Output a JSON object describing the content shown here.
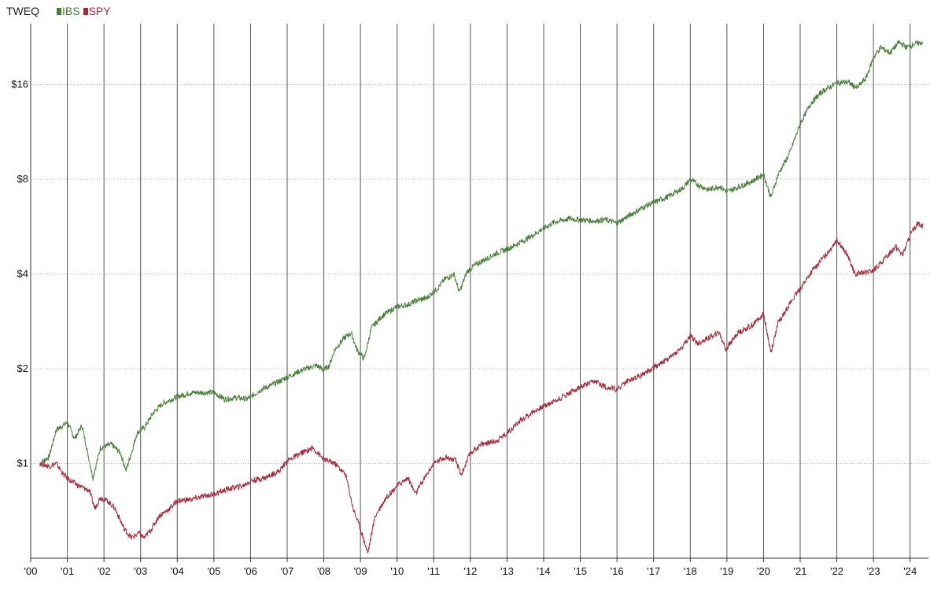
{
  "chart_data": {
    "type": "line",
    "title": "TWEQ",
    "yscale": "log2",
    "ylim": [
      0.5,
      25
    ],
    "xlim": [
      2000.0,
      2024.5
    ],
    "y_ticks": [
      {
        "value": 1,
        "label": "$1"
      },
      {
        "value": 2,
        "label": "$2"
      },
      {
        "value": 4,
        "label": "$4"
      },
      {
        "value": 8,
        "label": "$8"
      },
      {
        "value": 16,
        "label": "$16"
      }
    ],
    "x_ticks": [
      {
        "value": 2000,
        "label": "'00"
      },
      {
        "value": 2001,
        "label": "'01"
      },
      {
        "value": 2002,
        "label": "'02"
      },
      {
        "value": 2003,
        "label": "'03"
      },
      {
        "value": 2004,
        "label": "'04"
      },
      {
        "value": 2005,
        "label": "'05"
      },
      {
        "value": 2006,
        "label": "'06"
      },
      {
        "value": 2007,
        "label": "'07"
      },
      {
        "value": 2008,
        "label": "'08"
      },
      {
        "value": 2009,
        "label": "'09"
      },
      {
        "value": 2010,
        "label": "'10"
      },
      {
        "value": 2011,
        "label": "'11"
      },
      {
        "value": 2012,
        "label": "'12"
      },
      {
        "value": 2013,
        "label": "'13"
      },
      {
        "value": 2014,
        "label": "'14"
      },
      {
        "value": 2015,
        "label": "'15"
      },
      {
        "value": 2016,
        "label": "'16"
      },
      {
        "value": 2017,
        "label": "'17"
      },
      {
        "value": 2018,
        "label": "'18"
      },
      {
        "value": 2019,
        "label": "'19"
      },
      {
        "value": 2020,
        "label": "'20"
      },
      {
        "value": 2021,
        "label": "'21"
      },
      {
        "value": 2022,
        "label": "'22"
      },
      {
        "value": 2023,
        "label": "'23"
      },
      {
        "value": 2024,
        "label": "'24"
      }
    ],
    "grid": {
      "vertical": true,
      "horizontal_dotted": true
    },
    "legend_position": "top-left",
    "series": [
      {
        "name": "IBS",
        "color": "#4a7f3a",
        "points": [
          [
            2000.25,
            1.0
          ],
          [
            2000.5,
            1.05
          ],
          [
            2000.7,
            1.28
          ],
          [
            2001.0,
            1.35
          ],
          [
            2001.2,
            1.2
          ],
          [
            2001.4,
            1.32
          ],
          [
            2001.7,
            0.9
          ],
          [
            2001.9,
            1.12
          ],
          [
            2002.2,
            1.15
          ],
          [
            2002.45,
            1.08
          ],
          [
            2002.6,
            0.95
          ],
          [
            2002.75,
            1.08
          ],
          [
            2002.9,
            1.25
          ],
          [
            2003.1,
            1.3
          ],
          [
            2003.35,
            1.45
          ],
          [
            2003.6,
            1.55
          ],
          [
            2004.0,
            1.63
          ],
          [
            2004.4,
            1.68
          ],
          [
            2004.8,
            1.68
          ],
          [
            2005.0,
            1.68
          ],
          [
            2005.3,
            1.6
          ],
          [
            2005.6,
            1.62
          ],
          [
            2005.9,
            1.6
          ],
          [
            2006.3,
            1.72
          ],
          [
            2006.6,
            1.78
          ],
          [
            2007.0,
            1.88
          ],
          [
            2007.4,
            1.98
          ],
          [
            2007.8,
            2.05
          ],
          [
            2008.0,
            1.98
          ],
          [
            2008.15,
            2.05
          ],
          [
            2008.3,
            2.3
          ],
          [
            2008.55,
            2.5
          ],
          [
            2008.75,
            2.6
          ],
          [
            2008.9,
            2.3
          ],
          [
            2009.1,
            2.15
          ],
          [
            2009.3,
            2.7
          ],
          [
            2009.6,
            2.95
          ],
          [
            2010.0,
            3.15
          ],
          [
            2010.3,
            3.2
          ],
          [
            2010.55,
            3.3
          ],
          [
            2010.8,
            3.35
          ],
          [
            2011.1,
            3.6
          ],
          [
            2011.3,
            3.85
          ],
          [
            2011.55,
            4.0
          ],
          [
            2011.7,
            3.5
          ],
          [
            2011.9,
            4.05
          ],
          [
            2012.1,
            4.25
          ],
          [
            2012.4,
            4.45
          ],
          [
            2012.7,
            4.65
          ],
          [
            2013.0,
            4.8
          ],
          [
            2013.3,
            5.0
          ],
          [
            2013.7,
            5.3
          ],
          [
            2014.0,
            5.6
          ],
          [
            2014.3,
            5.85
          ],
          [
            2014.7,
            6.0
          ],
          [
            2015.0,
            5.95
          ],
          [
            2015.4,
            5.9
          ],
          [
            2015.7,
            5.95
          ],
          [
            2016.0,
            5.8
          ],
          [
            2016.3,
            6.1
          ],
          [
            2016.7,
            6.5
          ],
          [
            2017.0,
            6.75
          ],
          [
            2017.4,
            7.05
          ],
          [
            2017.8,
            7.5
          ],
          [
            2018.0,
            8.0
          ],
          [
            2018.2,
            7.7
          ],
          [
            2018.5,
            7.4
          ],
          [
            2018.8,
            7.6
          ],
          [
            2019.0,
            7.3
          ],
          [
            2019.3,
            7.55
          ],
          [
            2019.7,
            7.9
          ],
          [
            2020.0,
            8.3
          ],
          [
            2020.2,
            7.0
          ],
          [
            2020.4,
            8.3
          ],
          [
            2020.7,
            9.6
          ],
          [
            2021.0,
            12.0
          ],
          [
            2021.3,
            14.0
          ],
          [
            2021.6,
            15.2
          ],
          [
            2022.0,
            16.2
          ],
          [
            2022.3,
            16.3
          ],
          [
            2022.55,
            15.6
          ],
          [
            2022.8,
            16.8
          ],
          [
            2023.0,
            19.5
          ],
          [
            2023.2,
            21.0
          ],
          [
            2023.45,
            20.2
          ],
          [
            2023.7,
            21.8
          ],
          [
            2023.9,
            21.0
          ],
          [
            2024.1,
            21.5
          ],
          [
            2024.35,
            21.8
          ]
        ]
      },
      {
        "name": "SPY",
        "color": "#a52a3a",
        "points": [
          [
            2000.25,
            1.0
          ],
          [
            2000.5,
            0.98
          ],
          [
            2000.7,
            1.0
          ],
          [
            2000.9,
            0.92
          ],
          [
            2001.1,
            0.88
          ],
          [
            2001.3,
            0.85
          ],
          [
            2001.6,
            0.82
          ],
          [
            2001.75,
            0.72
          ],
          [
            2001.9,
            0.78
          ],
          [
            2002.1,
            0.76
          ],
          [
            2002.3,
            0.72
          ],
          [
            2002.55,
            0.62
          ],
          [
            2002.75,
            0.58
          ],
          [
            2002.95,
            0.6
          ],
          [
            2003.1,
            0.58
          ],
          [
            2003.3,
            0.62
          ],
          [
            2003.5,
            0.68
          ],
          [
            2003.8,
            0.72
          ],
          [
            2004.0,
            0.76
          ],
          [
            2004.4,
            0.77
          ],
          [
            2004.8,
            0.79
          ],
          [
            2005.0,
            0.8
          ],
          [
            2005.4,
            0.83
          ],
          [
            2005.8,
            0.85
          ],
          [
            2006.0,
            0.88
          ],
          [
            2006.4,
            0.9
          ],
          [
            2006.8,
            0.95
          ],
          [
            2007.0,
            1.02
          ],
          [
            2007.4,
            1.08
          ],
          [
            2007.7,
            1.12
          ],
          [
            2008.0,
            1.03
          ],
          [
            2008.3,
            1.0
          ],
          [
            2008.6,
            0.92
          ],
          [
            2008.8,
            0.72
          ],
          [
            2009.0,
            0.62
          ],
          [
            2009.2,
            0.52
          ],
          [
            2009.4,
            0.68
          ],
          [
            2009.7,
            0.78
          ],
          [
            2010.0,
            0.85
          ],
          [
            2010.3,
            0.9
          ],
          [
            2010.5,
            0.8
          ],
          [
            2010.8,
            0.92
          ],
          [
            2011.0,
            1.0
          ],
          [
            2011.3,
            1.05
          ],
          [
            2011.6,
            1.02
          ],
          [
            2011.75,
            0.92
          ],
          [
            2012.0,
            1.08
          ],
          [
            2012.3,
            1.15
          ],
          [
            2012.7,
            1.18
          ],
          [
            2013.0,
            1.25
          ],
          [
            2013.4,
            1.38
          ],
          [
            2013.8,
            1.48
          ],
          [
            2014.0,
            1.52
          ],
          [
            2014.4,
            1.6
          ],
          [
            2014.8,
            1.7
          ],
          [
            2015.0,
            1.75
          ],
          [
            2015.4,
            1.82
          ],
          [
            2015.7,
            1.75
          ],
          [
            2016.0,
            1.72
          ],
          [
            2016.3,
            1.83
          ],
          [
            2016.7,
            1.92
          ],
          [
            2017.0,
            2.02
          ],
          [
            2017.4,
            2.15
          ],
          [
            2017.8,
            2.35
          ],
          [
            2018.0,
            2.55
          ],
          [
            2018.2,
            2.4
          ],
          [
            2018.6,
            2.55
          ],
          [
            2018.8,
            2.6
          ],
          [
            2018.97,
            2.3
          ],
          [
            2019.3,
            2.6
          ],
          [
            2019.7,
            2.75
          ],
          [
            2020.0,
            3.0
          ],
          [
            2020.2,
            2.25
          ],
          [
            2020.4,
            2.8
          ],
          [
            2020.7,
            3.2
          ],
          [
            2021.0,
            3.6
          ],
          [
            2021.4,
            4.2
          ],
          [
            2021.7,
            4.6
          ],
          [
            2022.0,
            5.15
          ],
          [
            2022.3,
            4.55
          ],
          [
            2022.5,
            4.0
          ],
          [
            2022.8,
            4.05
          ],
          [
            2023.0,
            4.1
          ],
          [
            2023.3,
            4.45
          ],
          [
            2023.6,
            4.9
          ],
          [
            2023.8,
            4.6
          ],
          [
            2024.0,
            5.3
          ],
          [
            2024.2,
            5.8
          ],
          [
            2024.35,
            5.7
          ]
        ]
      }
    ]
  }
}
